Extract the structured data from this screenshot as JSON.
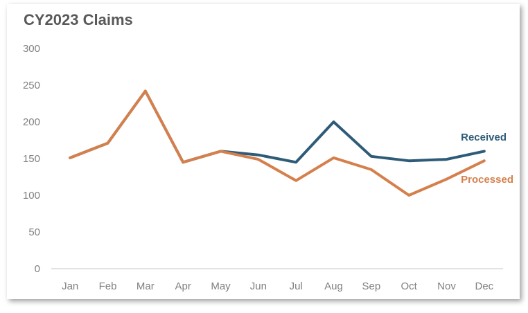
{
  "chart_data": {
    "type": "line",
    "title": "CY2023 Claims",
    "xlabel": "",
    "ylabel": "",
    "ylim": [
      0,
      300
    ],
    "yticks": [
      0,
      50,
      100,
      150,
      200,
      250,
      300
    ],
    "categories": [
      "Jan",
      "Feb",
      "Mar",
      "Apr",
      "May",
      "Jun",
      "Jul",
      "Aug",
      "Sep",
      "Oct",
      "Nov",
      "Dec"
    ],
    "grid": false,
    "legend": "direct labels at line ends",
    "series": [
      {
        "name": "Received",
        "color": "#2E5B77",
        "values": [
          151,
          171,
          242,
          145,
          160,
          155,
          145,
          200,
          153,
          147,
          149,
          160
        ]
      },
      {
        "name": "Processed",
        "color": "#D5804C",
        "values": [
          151,
          171,
          242,
          145,
          160,
          149,
          120,
          151,
          135,
          100,
          122,
          147
        ]
      }
    ]
  }
}
